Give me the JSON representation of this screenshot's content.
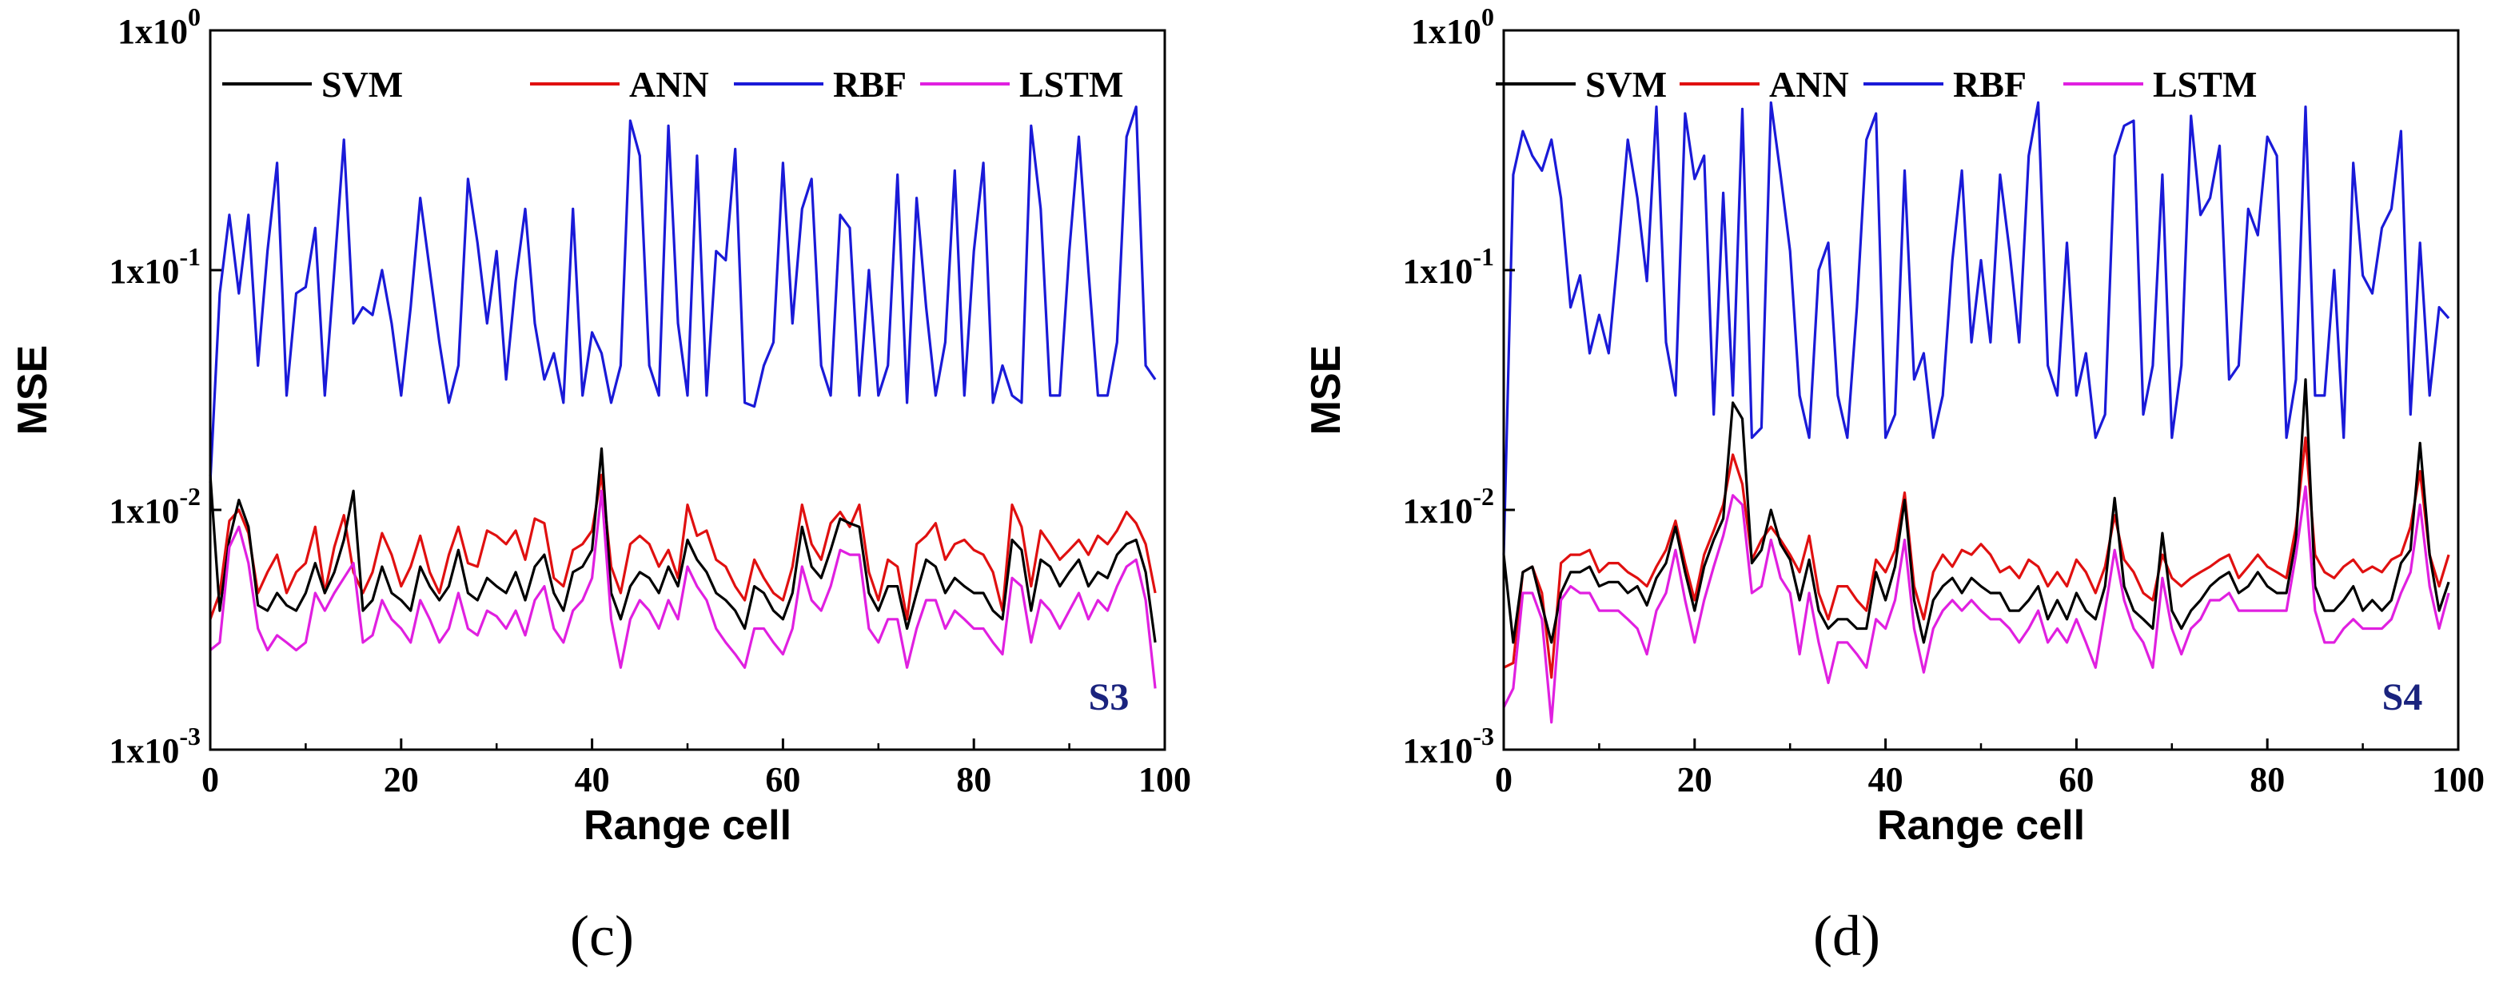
{
  "series_colors": {
    "SVM": "#000000",
    "ANN": "#e01010",
    "RBF": "#1a1ad8",
    "LSTM": "#e020e0"
  },
  "panels": [
    {
      "caption": "(c)",
      "chart_data": {
        "type": "line",
        "title": "",
        "tag": "S3",
        "xlabel": "Range cell",
        "ylabel": "MSE",
        "yscale": "log",
        "xlim": [
          0,
          100
        ],
        "ylim": [
          0.001,
          1
        ],
        "xticks": [
          "0",
          "20",
          "40",
          "60",
          "80",
          "100"
        ],
        "yticks": [
          {
            "base": "1x10",
            "exp": "-3"
          },
          {
            "base": "1x10",
            "exp": "-2"
          },
          {
            "base": "1x10",
            "exp": "-1"
          },
          {
            "base": "1x10",
            "exp": "0"
          }
        ],
        "legend": [
          "SVM",
          "ANN",
          "RBF",
          "LSTM"
        ],
        "x_start": 0,
        "series": [
          {
            "name": "RBF",
            "values": [
              0.013,
              0.08,
              0.17,
              0.08,
              0.17,
              0.04,
              0.12,
              0.28,
              0.03,
              0.08,
              0.085,
              0.15,
              0.03,
              0.1,
              0.35,
              0.06,
              0.07,
              0.065,
              0.1,
              0.06,
              0.03,
              0.07,
              0.2,
              0.1,
              0.05,
              0.028,
              0.04,
              0.24,
              0.13,
              0.06,
              0.12,
              0.035,
              0.09,
              0.18,
              0.06,
              0.035,
              0.045,
              0.028,
              0.18,
              0.03,
              0.055,
              0.045,
              0.028,
              0.04,
              0.42,
              0.3,
              0.04,
              0.03,
              0.4,
              0.06,
              0.03,
              0.3,
              0.03,
              0.12,
              0.11,
              0.32,
              0.028,
              0.027,
              0.04,
              0.05,
              0.28,
              0.06,
              0.18,
              0.24,
              0.04,
              0.03,
              0.17,
              0.15,
              0.03,
              0.1,
              0.03,
              0.04,
              0.25,
              0.028,
              0.2,
              0.07,
              0.03,
              0.05,
              0.26,
              0.03,
              0.12,
              0.28,
              0.028,
              0.04,
              0.03,
              0.028,
              0.4,
              0.18,
              0.03,
              0.03,
              0.12,
              0.36,
              0.1,
              0.03,
              0.03,
              0.05,
              0.36,
              0.48,
              0.04,
              0.035
            ]
          },
          {
            "name": "ANN",
            "values": [
              0.0035,
              0.0045,
              0.009,
              0.01,
              0.008,
              0.0045,
              0.0055,
              0.0065,
              0.0045,
              0.0055,
              0.006,
              0.0085,
              0.0045,
              0.007,
              0.0095,
              0.0055,
              0.0045,
              0.0055,
              0.008,
              0.0065,
              0.0048,
              0.0058,
              0.0078,
              0.0055,
              0.0045,
              0.0065,
              0.0085,
              0.006,
              0.0058,
              0.0082,
              0.0078,
              0.0072,
              0.0082,
              0.0062,
              0.0092,
              0.0088,
              0.0052,
              0.0048,
              0.0068,
              0.0072,
              0.0082,
              0.014,
              0.0058,
              0.0045,
              0.0072,
              0.0078,
              0.0072,
              0.0058,
              0.0068,
              0.0052,
              0.0105,
              0.0078,
              0.0082,
              0.0062,
              0.0058,
              0.0048,
              0.0042,
              0.0062,
              0.0052,
              0.0045,
              0.0042,
              0.0058,
              0.0105,
              0.0072,
              0.0062,
              0.0088,
              0.0098,
              0.0085,
              0.0105,
              0.0055,
              0.0042,
              0.0062,
              0.0058,
              0.0035,
              0.0072,
              0.0078,
              0.0088,
              0.0062,
              0.0072,
              0.0075,
              0.0068,
              0.0065,
              0.0055,
              0.0038,
              0.0105,
              0.0085,
              0.0048,
              0.0082,
              0.0072,
              0.0062,
              0.0068,
              0.0075,
              0.0065,
              0.0078,
              0.0072,
              0.0082,
              0.0098,
              0.0088,
              0.0072,
              0.0045
            ]
          },
          {
            "name": "SVM",
            "values": [
              0.014,
              0.0038,
              0.0075,
              0.011,
              0.0085,
              0.004,
              0.0038,
              0.0045,
              0.004,
              0.0038,
              0.0045,
              0.006,
              0.0045,
              0.0055,
              0.0075,
              0.012,
              0.0038,
              0.0042,
              0.0058,
              0.0045,
              0.0042,
              0.0038,
              0.0058,
              0.0048,
              0.0042,
              0.0048,
              0.0068,
              0.0045,
              0.0042,
              0.0052,
              0.0048,
              0.0045,
              0.0055,
              0.0042,
              0.0058,
              0.0065,
              0.0045,
              0.0038,
              0.0055,
              0.0058,
              0.0068,
              0.018,
              0.0045,
              0.0035,
              0.0048,
              0.0055,
              0.0052,
              0.0045,
              0.0058,
              0.0048,
              0.0075,
              0.0062,
              0.0055,
              0.0045,
              0.0042,
              0.0038,
              0.0032,
              0.0048,
              0.0045,
              0.0038,
              0.0035,
              0.0045,
              0.0085,
              0.0058,
              0.0052,
              0.0068,
              0.0092,
              0.0088,
              0.0085,
              0.0045,
              0.0038,
              0.0048,
              0.0048,
              0.0032,
              0.0045,
              0.0062,
              0.0058,
              0.0045,
              0.0052,
              0.0048,
              0.0045,
              0.0045,
              0.0038,
              0.0035,
              0.0075,
              0.0068,
              0.0038,
              0.0062,
              0.0058,
              0.0048,
              0.0055,
              0.0062,
              0.0048,
              0.0055,
              0.0052,
              0.0065,
              0.0072,
              0.0075,
              0.0055,
              0.0028
            ]
          },
          {
            "name": "LSTM",
            "values": [
              0.0026,
              0.0028,
              0.007,
              0.0085,
              0.006,
              0.0032,
              0.0026,
              0.003,
              0.0028,
              0.0026,
              0.0028,
              0.0045,
              0.0038,
              0.0045,
              0.0052,
              0.006,
              0.0028,
              0.003,
              0.0042,
              0.0035,
              0.0032,
              0.0028,
              0.0042,
              0.0035,
              0.0028,
              0.0032,
              0.0045,
              0.0032,
              0.003,
              0.0038,
              0.0036,
              0.0032,
              0.0038,
              0.003,
              0.0042,
              0.0048,
              0.0032,
              0.0028,
              0.0038,
              0.0042,
              0.0052,
              0.012,
              0.0035,
              0.0022,
              0.0035,
              0.0042,
              0.0038,
              0.0032,
              0.0042,
              0.0035,
              0.0058,
              0.0048,
              0.0042,
              0.0032,
              0.0028,
              0.0025,
              0.0022,
              0.0032,
              0.0032,
              0.0028,
              0.0025,
              0.0032,
              0.0058,
              0.0042,
              0.0038,
              0.0048,
              0.0068,
              0.0065,
              0.0065,
              0.0032,
              0.0028,
              0.0035,
              0.0035,
              0.0022,
              0.0032,
              0.0042,
              0.0042,
              0.0032,
              0.0038,
              0.0035,
              0.0032,
              0.0032,
              0.0028,
              0.0025,
              0.0052,
              0.0048,
              0.0028,
              0.0042,
              0.0038,
              0.0032,
              0.0038,
              0.0045,
              0.0035,
              0.0042,
              0.0038,
              0.0048,
              0.0058,
              0.0062,
              0.0042,
              0.0018
            ]
          }
        ]
      }
    },
    {
      "caption": "(d)",
      "chart_data": {
        "type": "line",
        "title": "",
        "tag": "S4",
        "xlabel": "Range cell",
        "ylabel": "MSE",
        "yscale": "log",
        "xlim": [
          0,
          100
        ],
        "ylim": [
          0.001,
          1
        ],
        "xticks": [
          "0",
          "20",
          "40",
          "60",
          "80",
          "100"
        ],
        "yticks": [
          {
            "base": "1x10",
            "exp": "-3"
          },
          {
            "base": "1x10",
            "exp": "-2"
          },
          {
            "base": "1x10",
            "exp": "-1"
          },
          {
            "base": "1x10",
            "exp": "0"
          }
        ],
        "legend": [
          "SVM",
          "ANN",
          "RBF",
          "LSTM"
        ],
        "x_start": 0,
        "series": [
          {
            "name": "RBF",
            "values": [
              0.0065,
              0.25,
              0.38,
              0.3,
              0.26,
              0.35,
              0.2,
              0.07,
              0.095,
              0.045,
              0.065,
              0.045,
              0.12,
              0.35,
              0.2,
              0.09,
              0.48,
              0.05,
              0.03,
              0.45,
              0.24,
              0.3,
              0.025,
              0.21,
              0.03,
              0.47,
              0.02,
              0.022,
              0.5,
              0.25,
              0.12,
              0.03,
              0.02,
              0.1,
              0.13,
              0.03,
              0.02,
              0.07,
              0.35,
              0.45,
              0.02,
              0.025,
              0.26,
              0.035,
              0.045,
              0.02,
              0.03,
              0.11,
              0.26,
              0.05,
              0.11,
              0.05,
              0.25,
              0.12,
              0.05,
              0.3,
              0.5,
              0.04,
              0.03,
              0.13,
              0.03,
              0.045,
              0.02,
              0.025,
              0.3,
              0.4,
              0.42,
              0.025,
              0.04,
              0.25,
              0.02,
              0.04,
              0.44,
              0.17,
              0.2,
              0.33,
              0.035,
              0.04,
              0.18,
              0.14,
              0.36,
              0.3,
              0.02,
              0.035,
              0.48,
              0.03,
              0.03,
              0.1,
              0.02,
              0.28,
              0.095,
              0.08,
              0.15,
              0.18,
              0.38,
              0.025,
              0.13,
              0.03,
              0.07,
              0.063
            ]
          },
          {
            "name": "ANN",
            "values": [
              0.0022,
              0.0023,
              0.0055,
              0.0058,
              0.0045,
              0.002,
              0.006,
              0.0065,
              0.0065,
              0.0068,
              0.0055,
              0.006,
              0.006,
              0.0055,
              0.0052,
              0.0048,
              0.0058,
              0.0068,
              0.009,
              0.006,
              0.0042,
              0.0065,
              0.0082,
              0.0105,
              0.017,
              0.0128,
              0.0062,
              0.0075,
              0.0085,
              0.0075,
              0.0065,
              0.0055,
              0.0078,
              0.0045,
              0.0035,
              0.0048,
              0.0048,
              0.0042,
              0.0038,
              0.0062,
              0.0055,
              0.0068,
              0.0118,
              0.0048,
              0.0035,
              0.0055,
              0.0065,
              0.0058,
              0.0068,
              0.0065,
              0.0072,
              0.0065,
              0.0055,
              0.0058,
              0.0052,
              0.0062,
              0.0058,
              0.0048,
              0.0055,
              0.0048,
              0.0062,
              0.0055,
              0.0045,
              0.0058,
              0.0095,
              0.0062,
              0.0055,
              0.0045,
              0.0042,
              0.0065,
              0.0052,
              0.0048,
              0.0052,
              0.0055,
              0.0058,
              0.0062,
              0.0065,
              0.0052,
              0.0058,
              0.0065,
              0.0058,
              0.0055,
              0.0052,
              0.0085,
              0.02,
              0.0065,
              0.0055,
              0.0052,
              0.0058,
              0.0062,
              0.0055,
              0.0058,
              0.0055,
              0.0062,
              0.0065,
              0.0085,
              0.0145,
              0.0065,
              0.0048,
              0.0065
            ]
          },
          {
            "name": "SVM",
            "values": [
              0.0065,
              0.0028,
              0.0055,
              0.0058,
              0.004,
              0.0028,
              0.0045,
              0.0055,
              0.0055,
              0.0058,
              0.0048,
              0.005,
              0.005,
              0.0045,
              0.0048,
              0.004,
              0.0052,
              0.006,
              0.0085,
              0.0055,
              0.0038,
              0.0058,
              0.0075,
              0.0092,
              0.028,
              0.024,
              0.006,
              0.0068,
              0.01,
              0.0072,
              0.0062,
              0.0042,
              0.0062,
              0.0038,
              0.0032,
              0.0035,
              0.0035,
              0.0032,
              0.0032,
              0.0055,
              0.0042,
              0.0058,
              0.011,
              0.0042,
              0.0028,
              0.0042,
              0.0048,
              0.0052,
              0.0045,
              0.0052,
              0.0048,
              0.0045,
              0.0045,
              0.0038,
              0.0038,
              0.0042,
              0.0048,
              0.0035,
              0.0042,
              0.0035,
              0.0045,
              0.0038,
              0.0035,
              0.0048,
              0.0112,
              0.0048,
              0.0038,
              0.0035,
              0.0032,
              0.008,
              0.0038,
              0.0032,
              0.0038,
              0.0042,
              0.0048,
              0.0052,
              0.0055,
              0.0045,
              0.0048,
              0.0055,
              0.0048,
              0.0045,
              0.0045,
              0.0075,
              0.035,
              0.0048,
              0.0038,
              0.0038,
              0.0042,
              0.0048,
              0.0038,
              0.0042,
              0.0038,
              0.0042,
              0.006,
              0.0068,
              0.019,
              0.0065,
              0.0038,
              0.005
            ]
          },
          {
            "name": "LSTM",
            "values": [
              0.0015,
              0.0018,
              0.0045,
              0.0045,
              0.0035,
              0.0013,
              0.0042,
              0.0048,
              0.0045,
              0.0045,
              0.0038,
              0.0038,
              0.0038,
              0.0035,
              0.0032,
              0.0025,
              0.0038,
              0.0045,
              0.0068,
              0.0042,
              0.0028,
              0.0042,
              0.0058,
              0.0078,
              0.0115,
              0.0105,
              0.0045,
              0.0048,
              0.0075,
              0.0052,
              0.0045,
              0.0025,
              0.0045,
              0.0028,
              0.0019,
              0.0028,
              0.0028,
              0.0025,
              0.0022,
              0.0035,
              0.0032,
              0.0042,
              0.0075,
              0.0032,
              0.0021,
              0.0032,
              0.0038,
              0.0042,
              0.0038,
              0.0042,
              0.0038,
              0.0035,
              0.0035,
              0.0032,
              0.0028,
              0.0032,
              0.0038,
              0.0028,
              0.0032,
              0.0028,
              0.0035,
              0.0028,
              0.0022,
              0.0038,
              0.0068,
              0.0042,
              0.0032,
              0.0028,
              0.0022,
              0.0052,
              0.0032,
              0.0025,
              0.0032,
              0.0035,
              0.0042,
              0.0042,
              0.0045,
              0.0038,
              0.0038,
              0.0038,
              0.0038,
              0.0038,
              0.0038,
              0.0065,
              0.0125,
              0.0038,
              0.0028,
              0.0028,
              0.0032,
              0.0035,
              0.0032,
              0.0032,
              0.0032,
              0.0035,
              0.0045,
              0.0055,
              0.0105,
              0.0048,
              0.0032,
              0.0045
            ]
          }
        ]
      }
    }
  ]
}
